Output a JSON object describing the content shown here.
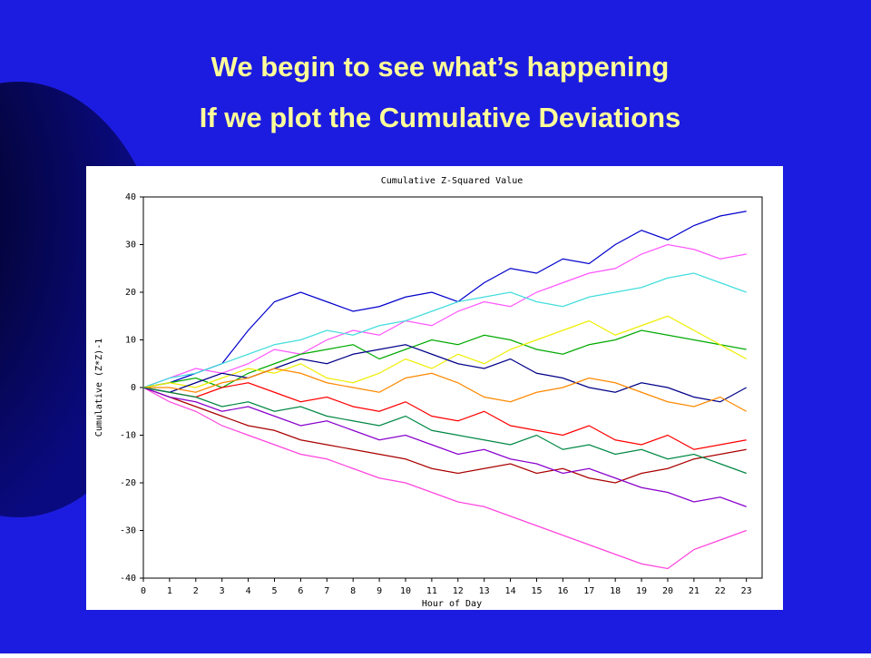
{
  "slide": {
    "title": [
      "We begin to see what’s happening",
      "If we plot the Cumulative Deviations"
    ]
  },
  "chart_data": {
    "type": "line",
    "title": "Cumulative Z-Squared Value",
    "x_label": "Hour of Day",
    "y_label": "Cumulative (Z*Z)-1",
    "x": [
      0,
      1,
      2,
      3,
      4,
      5,
      6,
      7,
      8,
      9,
      10,
      11,
      12,
      13,
      14,
      15,
      16,
      17,
      18,
      19,
      20,
      21,
      22,
      23
    ],
    "xlim": [
      0,
      23.6
    ],
    "xticks": [
      0,
      1,
      2,
      3,
      4,
      5,
      6,
      7,
      8,
      9,
      10,
      11,
      12,
      13,
      14,
      15,
      16,
      17,
      18,
      19,
      20,
      21,
      22,
      23
    ],
    "ylim": [
      -40,
      40
    ],
    "yticks": [
      -40,
      -30,
      -20,
      -10,
      0,
      10,
      20,
      30,
      40
    ],
    "series": [
      {
        "color": "#0000cc",
        "values": [
          0,
          1,
          3,
          5,
          12,
          18,
          20,
          18,
          16,
          17,
          19,
          20,
          18,
          22,
          25,
          24,
          27,
          26,
          30,
          33,
          31,
          34,
          36,
          37
        ]
      },
      {
        "color": "#ff55ff",
        "values": [
          0,
          2,
          4,
          3,
          5,
          8,
          7,
          10,
          12,
          11,
          14,
          13,
          16,
          18,
          17,
          20,
          22,
          24,
          25,
          28,
          30,
          29,
          27,
          28
        ]
      },
      {
        "color": "#ff44dd",
        "values": [
          0,
          -3,
          -5,
          -8,
          -10,
          -12,
          -14,
          -15,
          -17,
          -19,
          -20,
          -22,
          -24,
          -25,
          -27,
          -29,
          -31,
          -33,
          -35,
          -37,
          -38,
          -34,
          -32,
          -30
        ]
      },
      {
        "color": "#aa0000",
        "values": [
          0,
          -2,
          -4,
          -6,
          -8,
          -9,
          -11,
          -12,
          -13,
          -14,
          -15,
          -17,
          -18,
          -17,
          -16,
          -18,
          -17,
          -19,
          -20,
          -18,
          -17,
          -15,
          -14,
          -13
        ]
      },
      {
        "color": "#00aa00",
        "values": [
          0,
          1,
          2,
          0,
          3,
          5,
          7,
          8,
          9,
          6,
          8,
          10,
          9,
          11,
          10,
          8,
          7,
          9,
          10,
          12,
          11,
          10,
          9,
          8
        ]
      },
      {
        "color": "#44dddd",
        "values": [
          0,
          2,
          3,
          5,
          7,
          9,
          10,
          12,
          11,
          13,
          14,
          16,
          18,
          19,
          20,
          18,
          17,
          19,
          20,
          21,
          23,
          24,
          22,
          20
        ]
      },
      {
        "color": "#ff0000",
        "values": [
          0,
          -1,
          -2,
          0,
          1,
          -1,
          -3,
          -2,
          -4,
          -5,
          -3,
          -6,
          -7,
          -5,
          -8,
          -9,
          -10,
          -8,
          -11,
          -12,
          -10,
          -13,
          -12,
          -11
        ]
      },
      {
        "color": "#eeee00",
        "values": [
          0,
          1,
          0,
          2,
          4,
          3,
          5,
          2,
          1,
          3,
          6,
          4,
          7,
          5,
          8,
          10,
          12,
          14,
          11,
          13,
          15,
          12,
          9,
          6
        ]
      },
      {
        "color": "#000088",
        "values": [
          0,
          -1,
          1,
          3,
          2,
          4,
          6,
          5,
          7,
          8,
          9,
          7,
          5,
          4,
          6,
          3,
          2,
          0,
          -1,
          1,
          0,
          -2,
          -3,
          0
        ]
      },
      {
        "color": "#8800cc",
        "values": [
          0,
          -2,
          -3,
          -5,
          -4,
          -6,
          -8,
          -7,
          -9,
          -11,
          -10,
          -12,
          -14,
          -13,
          -15,
          -16,
          -18,
          -17,
          -19,
          -21,
          -22,
          -24,
          -23,
          -25
        ]
      },
      {
        "color": "#ff8800",
        "values": [
          0,
          0,
          -1,
          1,
          2,
          4,
          3,
          1,
          0,
          -1,
          2,
          3,
          1,
          -2,
          -3,
          -1,
          0,
          2,
          1,
          -1,
          -3,
          -4,
          -2,
          -5
        ]
      },
      {
        "color": "#008844",
        "values": [
          0,
          -1,
          -2,
          -4,
          -3,
          -5,
          -4,
          -6,
          -7,
          -8,
          -6,
          -9,
          -10,
          -11,
          -12,
          -10,
          -13,
          -12,
          -14,
          -13,
          -15,
          -14,
          -16,
          -18
        ]
      }
    ]
  }
}
